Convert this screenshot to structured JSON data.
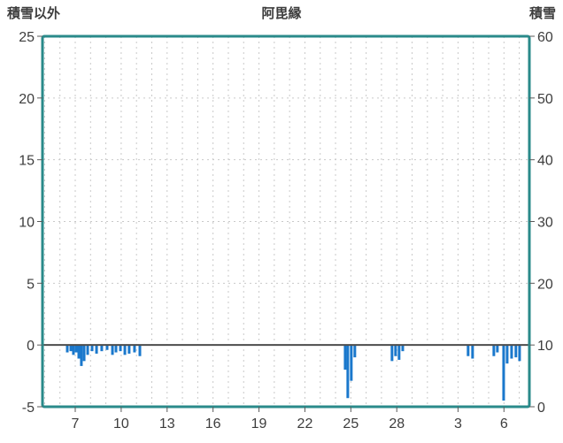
{
  "header": {
    "left_label": "積雪以外",
    "title": "阿毘縁",
    "right_label": "積雪"
  },
  "colors": {
    "border": "#2a8a8a",
    "bar": "#1a78cc",
    "grid": "#c9c9c9",
    "zero_line": "#4d4d4d",
    "tick": "#5a5a5a",
    "text": "#3d3d3d"
  },
  "chart_data": {
    "type": "bar",
    "title": "阿毘縁",
    "left_axis": {
      "label": "積雪以外",
      "min": -5,
      "max": 25,
      "ticks": [
        25,
        20,
        15,
        10,
        5,
        0,
        -5
      ]
    },
    "right_axis": {
      "label": "積雪",
      "min": 0,
      "max": 60,
      "ticks": [
        60,
        50,
        40,
        30,
        20,
        10,
        0
      ]
    },
    "x_axis": {
      "domain": [
        0,
        31.8
      ],
      "tick_labels": [
        "7",
        "10",
        "13",
        "16",
        "19",
        "22",
        "25",
        "28",
        "3",
        "6"
      ],
      "tick_positions": [
        2.14,
        5.14,
        8.14,
        11.14,
        14.14,
        17.14,
        20.14,
        23.14,
        27.14,
        30.14
      ],
      "minor_grid_step": 1,
      "minor_grid_offset": 0.14,
      "grid": "dashed"
    },
    "horizontal_gridlines_at": [
      20,
      15,
      10,
      5
    ],
    "zero_line_at": 0,
    "bars": [
      [
        1.62,
        -0.6
      ],
      [
        1.85,
        -0.5
      ],
      [
        2.02,
        -0.8
      ],
      [
        2.2,
        -0.6
      ],
      [
        2.37,
        -1.1
      ],
      [
        2.54,
        -1.7
      ],
      [
        2.72,
        -1.3
      ],
      [
        2.95,
        -0.8
      ],
      [
        3.24,
        -0.5
      ],
      [
        3.53,
        -0.7
      ],
      [
        3.87,
        -0.5
      ],
      [
        4.22,
        -0.4
      ],
      [
        4.57,
        -0.8
      ],
      [
        4.8,
        -0.6
      ],
      [
        5.09,
        -0.5
      ],
      [
        5.38,
        -0.8
      ],
      [
        5.66,
        -0.7
      ],
      [
        6.01,
        -0.6
      ],
      [
        6.36,
        -0.9
      ],
      [
        19.77,
        -2.0
      ],
      [
        19.94,
        -4.3
      ],
      [
        20.17,
        -2.9
      ],
      [
        20.4,
        -1.0
      ],
      [
        22.83,
        -1.3
      ],
      [
        23.06,
        -0.9
      ],
      [
        23.29,
        -1.2
      ],
      [
        23.53,
        -0.5
      ],
      [
        27.8,
        -0.9
      ],
      [
        28.09,
        -1.1
      ],
      [
        29.48,
        -0.9
      ],
      [
        29.71,
        -0.6
      ],
      [
        30.12,
        -4.5
      ],
      [
        30.35,
        -1.5
      ],
      [
        30.64,
        -1.1
      ],
      [
        30.92,
        -1.0
      ],
      [
        31.16,
        -1.3
      ]
    ]
  }
}
